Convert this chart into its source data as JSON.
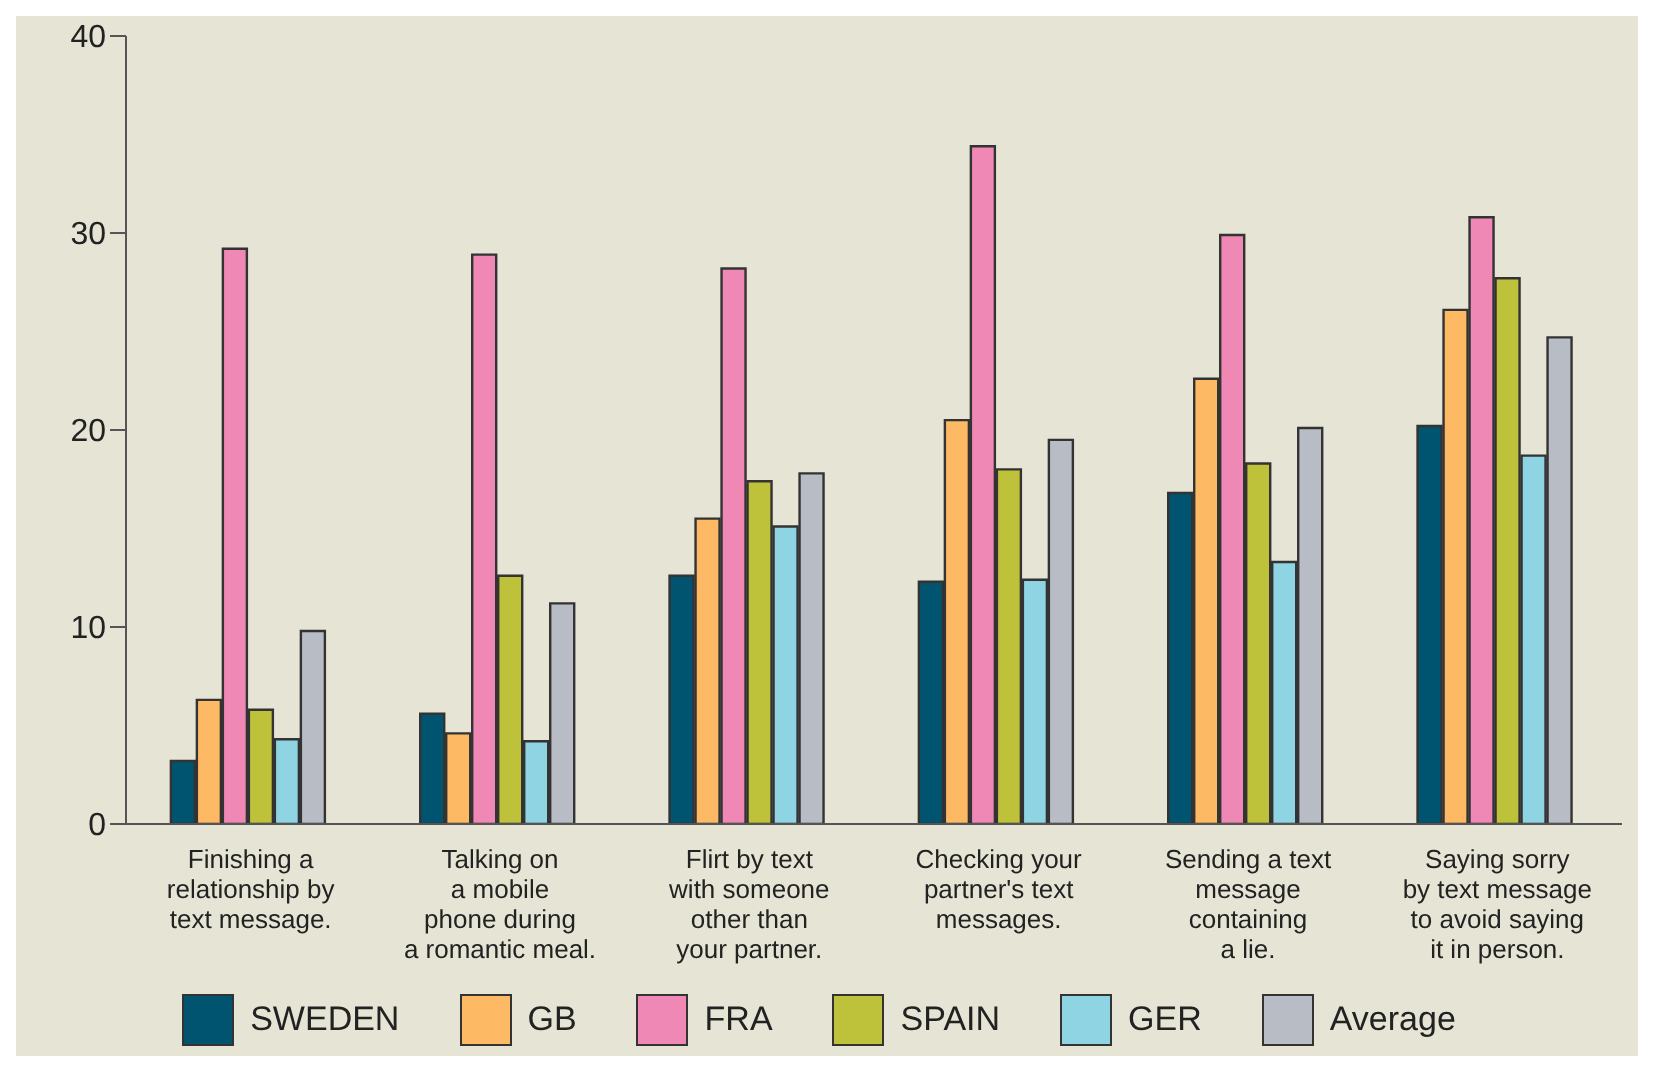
{
  "chart_data": {
    "type": "bar",
    "categories": [
      "Finishing a\nrelationship by\ntext message.",
      "Talking on\na mobile\nphone during\na romantic meal.",
      "Flirt by text\nwith someone\nother than\nyour partner.",
      "Checking your\npartner's text\nmessages.",
      "Sending a text\nmessage\ncontaining\na lie.",
      "Saying sorry\nby text message\nto avoid saying\nit in person."
    ],
    "series": [
      {
        "name": "SWEDEN",
        "color": "#005470",
        "values": [
          3.2,
          5.6,
          12.6,
          12.3,
          16.8,
          20.2
        ]
      },
      {
        "name": "GB",
        "color": "#fdb964",
        "values": [
          6.3,
          4.6,
          15.5,
          20.5,
          22.6,
          26.1
        ]
      },
      {
        "name": "FRA",
        "color": "#f088b6",
        "values": [
          29.2,
          28.9,
          28.2,
          34.4,
          29.9,
          30.8
        ]
      },
      {
        "name": "SPAIN",
        "color": "#bec23a",
        "values": [
          5.8,
          12.6,
          17.4,
          18.0,
          18.3,
          27.7
        ]
      },
      {
        "name": "GER",
        "color": "#8ed4e3",
        "values": [
          4.3,
          4.2,
          15.1,
          12.4,
          13.3,
          18.7
        ]
      },
      {
        "name": "Average",
        "color": "#b8bcc4",
        "values": [
          9.8,
          11.2,
          17.8,
          19.5,
          20.1,
          24.7
        ]
      }
    ],
    "ylim": [
      0,
      40
    ],
    "yticks": [
      0,
      10,
      20,
      30,
      40
    ],
    "legend": "bottom"
  }
}
